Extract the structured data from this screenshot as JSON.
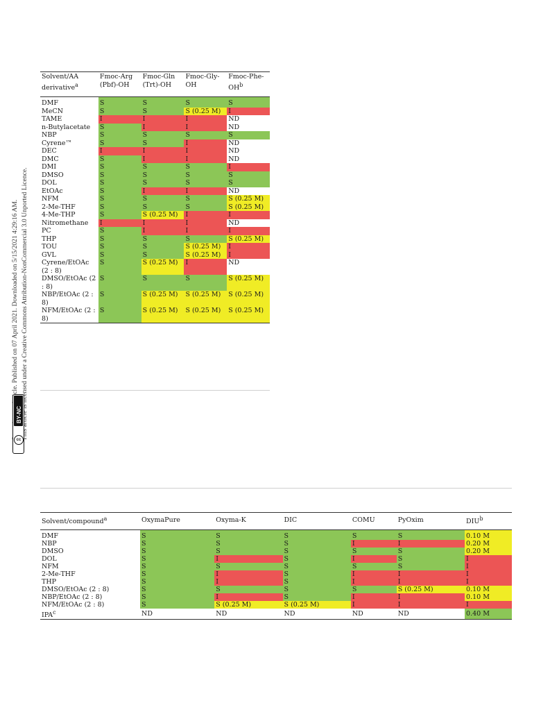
{
  "sidebar": {
    "line1": "Open Access Article. Published on 07 April 2021. Downloaded on 5/15/2021 4:29:16 AM.",
    "line2": "This article is licensed under a Creative Commons Attribution-NonCommercial 3.0 Unported Licence.",
    "badge_text": "BY-NC",
    "badge_mark": "cc"
  },
  "table1": {
    "headers": [
      {
        "main": "Solvent/AA derivative",
        "sup": "a"
      },
      {
        "main": "Fmoc-Arg (Pbf)-OH",
        "sup": ""
      },
      {
        "main": "Fmoc-Gln (Trt)-OH",
        "sup": ""
      },
      {
        "main": "Fmoc-Gly-OH",
        "sup": ""
      },
      {
        "main": "Fmoc-Phe-OH",
        "sup": "b"
      }
    ],
    "rows": [
      {
        "solvent": "DMF",
        "cells": [
          [
            "S",
            "S"
          ],
          [
            "S",
            "S"
          ],
          [
            "S",
            "S"
          ],
          [
            "S",
            "S"
          ]
        ]
      },
      {
        "solvent": "MeCN",
        "cells": [
          [
            "S",
            "S"
          ],
          [
            "S",
            "S"
          ],
          [
            "S (0.25 M)",
            "Y"
          ],
          [
            "I",
            "I"
          ]
        ]
      },
      {
        "solvent": "TAME",
        "cells": [
          [
            "I",
            "I"
          ],
          [
            "I",
            "I"
          ],
          [
            "I",
            "I"
          ],
          [
            "ND",
            "N"
          ]
        ]
      },
      {
        "solvent": "n-Butylacetate",
        "cells": [
          [
            "S",
            "S"
          ],
          [
            "I",
            "I"
          ],
          [
            "I",
            "I"
          ],
          [
            "ND",
            "N"
          ]
        ]
      },
      {
        "solvent": "NBP",
        "cells": [
          [
            "S",
            "S"
          ],
          [
            "S",
            "S"
          ],
          [
            "S",
            "S"
          ],
          [
            "S",
            "S"
          ]
        ]
      },
      {
        "solvent": "Cyrene™",
        "cells": [
          [
            "S",
            "S"
          ],
          [
            "S",
            "S"
          ],
          [
            "I",
            "I"
          ],
          [
            "ND",
            "N"
          ]
        ]
      },
      {
        "solvent": "DEC",
        "cells": [
          [
            "I",
            "I"
          ],
          [
            "I",
            "I"
          ],
          [
            "I",
            "I"
          ],
          [
            "ND",
            "N"
          ]
        ]
      },
      {
        "solvent": "DMC",
        "cells": [
          [
            "S",
            "S"
          ],
          [
            "I",
            "I"
          ],
          [
            "I",
            "I"
          ],
          [
            "ND",
            "N"
          ]
        ]
      },
      {
        "solvent": "DMI",
        "cells": [
          [
            "S",
            "S"
          ],
          [
            "S",
            "S"
          ],
          [
            "S",
            "S"
          ],
          [
            "I",
            "I"
          ]
        ]
      },
      {
        "solvent": "DMSO",
        "cells": [
          [
            "S",
            "S"
          ],
          [
            "S",
            "S"
          ],
          [
            "S",
            "S"
          ],
          [
            "S",
            "S"
          ]
        ]
      },
      {
        "solvent": "DOL",
        "cells": [
          [
            "S",
            "S"
          ],
          [
            "S",
            "S"
          ],
          [
            "S",
            "S"
          ],
          [
            "S",
            "S"
          ]
        ]
      },
      {
        "solvent": "EtOAc",
        "cells": [
          [
            "S",
            "S"
          ],
          [
            "I",
            "I"
          ],
          [
            "I",
            "I"
          ],
          [
            "ND",
            "N"
          ]
        ]
      },
      {
        "solvent": "NFM",
        "cells": [
          [
            "S",
            "S"
          ],
          [
            "S",
            "S"
          ],
          [
            "S",
            "S"
          ],
          [
            "S (0.25 M)",
            "Y"
          ]
        ]
      },
      {
        "solvent": "2-Me-THF",
        "cells": [
          [
            "S",
            "S"
          ],
          [
            "S",
            "S"
          ],
          [
            "S",
            "S"
          ],
          [
            "S (0.25 M)",
            "Y"
          ]
        ]
      },
      {
        "solvent": "4-Me-THP",
        "cells": [
          [
            "S",
            "S"
          ],
          [
            "S (0.25 M)",
            "Y"
          ],
          [
            "I",
            "I"
          ],
          [
            "I",
            "I"
          ]
        ]
      },
      {
        "solvent": "Nitromethane",
        "cells": [
          [
            "I",
            "I"
          ],
          [
            "I",
            "I"
          ],
          [
            "I",
            "I"
          ],
          [
            "ND",
            "N"
          ]
        ]
      },
      {
        "solvent": "PC",
        "cells": [
          [
            "S",
            "S"
          ],
          [
            "I",
            "I"
          ],
          [
            "I",
            "I"
          ],
          [
            "I",
            "I"
          ]
        ]
      },
      {
        "solvent": "THP",
        "cells": [
          [
            "S",
            "S"
          ],
          [
            "S",
            "S"
          ],
          [
            "S",
            "S"
          ],
          [
            "S (0.25 M)",
            "Y"
          ]
        ]
      },
      {
        "solvent": "TOU",
        "cells": [
          [
            "S",
            "S"
          ],
          [
            "S",
            "S"
          ],
          [
            "S (0.25 M)",
            "Y"
          ],
          [
            "I",
            "I"
          ]
        ]
      },
      {
        "solvent": "GVL",
        "cells": [
          [
            "S",
            "S"
          ],
          [
            "S",
            "S"
          ],
          [
            "S (0.25 M)",
            "Y"
          ],
          [
            "I",
            "I"
          ]
        ]
      },
      {
        "solvent": "Cyrene/EtOAc (2 : 8)",
        "cells": [
          [
            "S",
            "S"
          ],
          [
            "S (0.25 M)",
            "Y"
          ],
          [
            "I",
            "I"
          ],
          [
            "ND",
            "N"
          ]
        ]
      },
      {
        "solvent": "DMSO/EtOAc (2 : 8)",
        "cells": [
          [
            "S",
            "S"
          ],
          [
            "S",
            "S"
          ],
          [
            "S",
            "S"
          ],
          [
            "S (0.25 M)",
            "Y"
          ]
        ]
      },
      {
        "solvent": "NBP/EtOAc (2 : 8)",
        "cells": [
          [
            "S",
            "S"
          ],
          [
            "S (0.25 M)",
            "Y"
          ],
          [
            "S (0.25 M)",
            "Y"
          ],
          [
            "S (0.25 M)",
            "Y"
          ]
        ]
      },
      {
        "solvent": "NFM/EtOAc (2 : 8)",
        "cells": [
          [
            "S",
            "S"
          ],
          [
            "S (0.25 M)",
            "Y"
          ],
          [
            "S (0.25 M)",
            "Y"
          ],
          [
            "S (0.25 M)",
            "Y"
          ]
        ]
      }
    ]
  },
  "table2": {
    "headers": [
      {
        "main": "Solvent/compound",
        "sup": "a"
      },
      {
        "main": "OxymaPure",
        "sup": ""
      },
      {
        "main": "Oxyma-K",
        "sup": ""
      },
      {
        "main": "DIC",
        "sup": ""
      },
      {
        "main": "COMU",
        "sup": ""
      },
      {
        "main": "PyOxim",
        "sup": ""
      },
      {
        "main": "DIU",
        "sup": "b"
      }
    ],
    "rows": [
      {
        "solvent": "DMF",
        "sup": "",
        "cells": [
          [
            "S",
            "S"
          ],
          [
            "S",
            "S"
          ],
          [
            "S",
            "S"
          ],
          [
            "S",
            "S"
          ],
          [
            "S",
            "S"
          ],
          [
            "0.10 M",
            "Y"
          ]
        ]
      },
      {
        "solvent": "NBP",
        "sup": "",
        "cells": [
          [
            "S",
            "S"
          ],
          [
            "S",
            "S"
          ],
          [
            "S",
            "S"
          ],
          [
            "I",
            "I"
          ],
          [
            "I",
            "I"
          ],
          [
            "0.20 M",
            "Y"
          ]
        ]
      },
      {
        "solvent": "DMSO",
        "sup": "",
        "cells": [
          [
            "S",
            "S"
          ],
          [
            "S",
            "S"
          ],
          [
            "S",
            "S"
          ],
          [
            "S",
            "S"
          ],
          [
            "S",
            "S"
          ],
          [
            "0.20 M",
            "Y"
          ]
        ]
      },
      {
        "solvent": "DOL",
        "sup": "",
        "cells": [
          [
            "S",
            "S"
          ],
          [
            "I",
            "I"
          ],
          [
            "S",
            "S"
          ],
          [
            "I",
            "I"
          ],
          [
            "S",
            "S"
          ],
          [
            "I",
            "I"
          ]
        ]
      },
      {
        "solvent": "NFM",
        "sup": "",
        "cells": [
          [
            "S",
            "S"
          ],
          [
            "S",
            "S"
          ],
          [
            "S",
            "S"
          ],
          [
            "S",
            "S"
          ],
          [
            "S",
            "S"
          ],
          [
            "I",
            "I"
          ]
        ]
      },
      {
        "solvent": "2-Me-THF",
        "sup": "",
        "cells": [
          [
            "S",
            "S"
          ],
          [
            "I",
            "I"
          ],
          [
            "S",
            "S"
          ],
          [
            "I",
            "I"
          ],
          [
            "I",
            "I"
          ],
          [
            "I",
            "I"
          ]
        ]
      },
      {
        "solvent": "THP",
        "sup": "",
        "cells": [
          [
            "S",
            "S"
          ],
          [
            "I",
            "I"
          ],
          [
            "S",
            "S"
          ],
          [
            "I",
            "I"
          ],
          [
            "I",
            "I"
          ],
          [
            "I",
            "I"
          ]
        ]
      },
      {
        "solvent": "DMSO/EtOAc (2 : 8)",
        "sup": "",
        "cells": [
          [
            "S",
            "S"
          ],
          [
            "S",
            "S"
          ],
          [
            "S",
            "S"
          ],
          [
            "S",
            "S"
          ],
          [
            "S (0.25 M)",
            "Y"
          ],
          [
            "0.10 M",
            "Y"
          ]
        ]
      },
      {
        "solvent": "NBP/EtOAc (2 : 8)",
        "sup": "",
        "cells": [
          [
            "S",
            "S"
          ],
          [
            "I",
            "I"
          ],
          [
            "S",
            "S"
          ],
          [
            "I",
            "I"
          ],
          [
            "I",
            "I"
          ],
          [
            "0.10 M",
            "Y"
          ]
        ]
      },
      {
        "solvent": "NFM/EtOAc (2 : 8)",
        "sup": "",
        "cells": [
          [
            "S",
            "S"
          ],
          [
            "S (0.25 M)",
            "Y"
          ],
          [
            "S (0.25 M)",
            "Y"
          ],
          [
            "I",
            "I"
          ],
          [
            "I",
            "I"
          ],
          [
            "I",
            "I"
          ]
        ]
      },
      {
        "solvent": "IPA",
        "sup": "c",
        "cells": [
          [
            "ND",
            "N"
          ],
          [
            "ND",
            "N"
          ],
          [
            "ND",
            "N"
          ],
          [
            "ND",
            "N"
          ],
          [
            "ND",
            "N"
          ],
          [
            "0.40 M",
            "S"
          ]
        ]
      }
    ]
  }
}
